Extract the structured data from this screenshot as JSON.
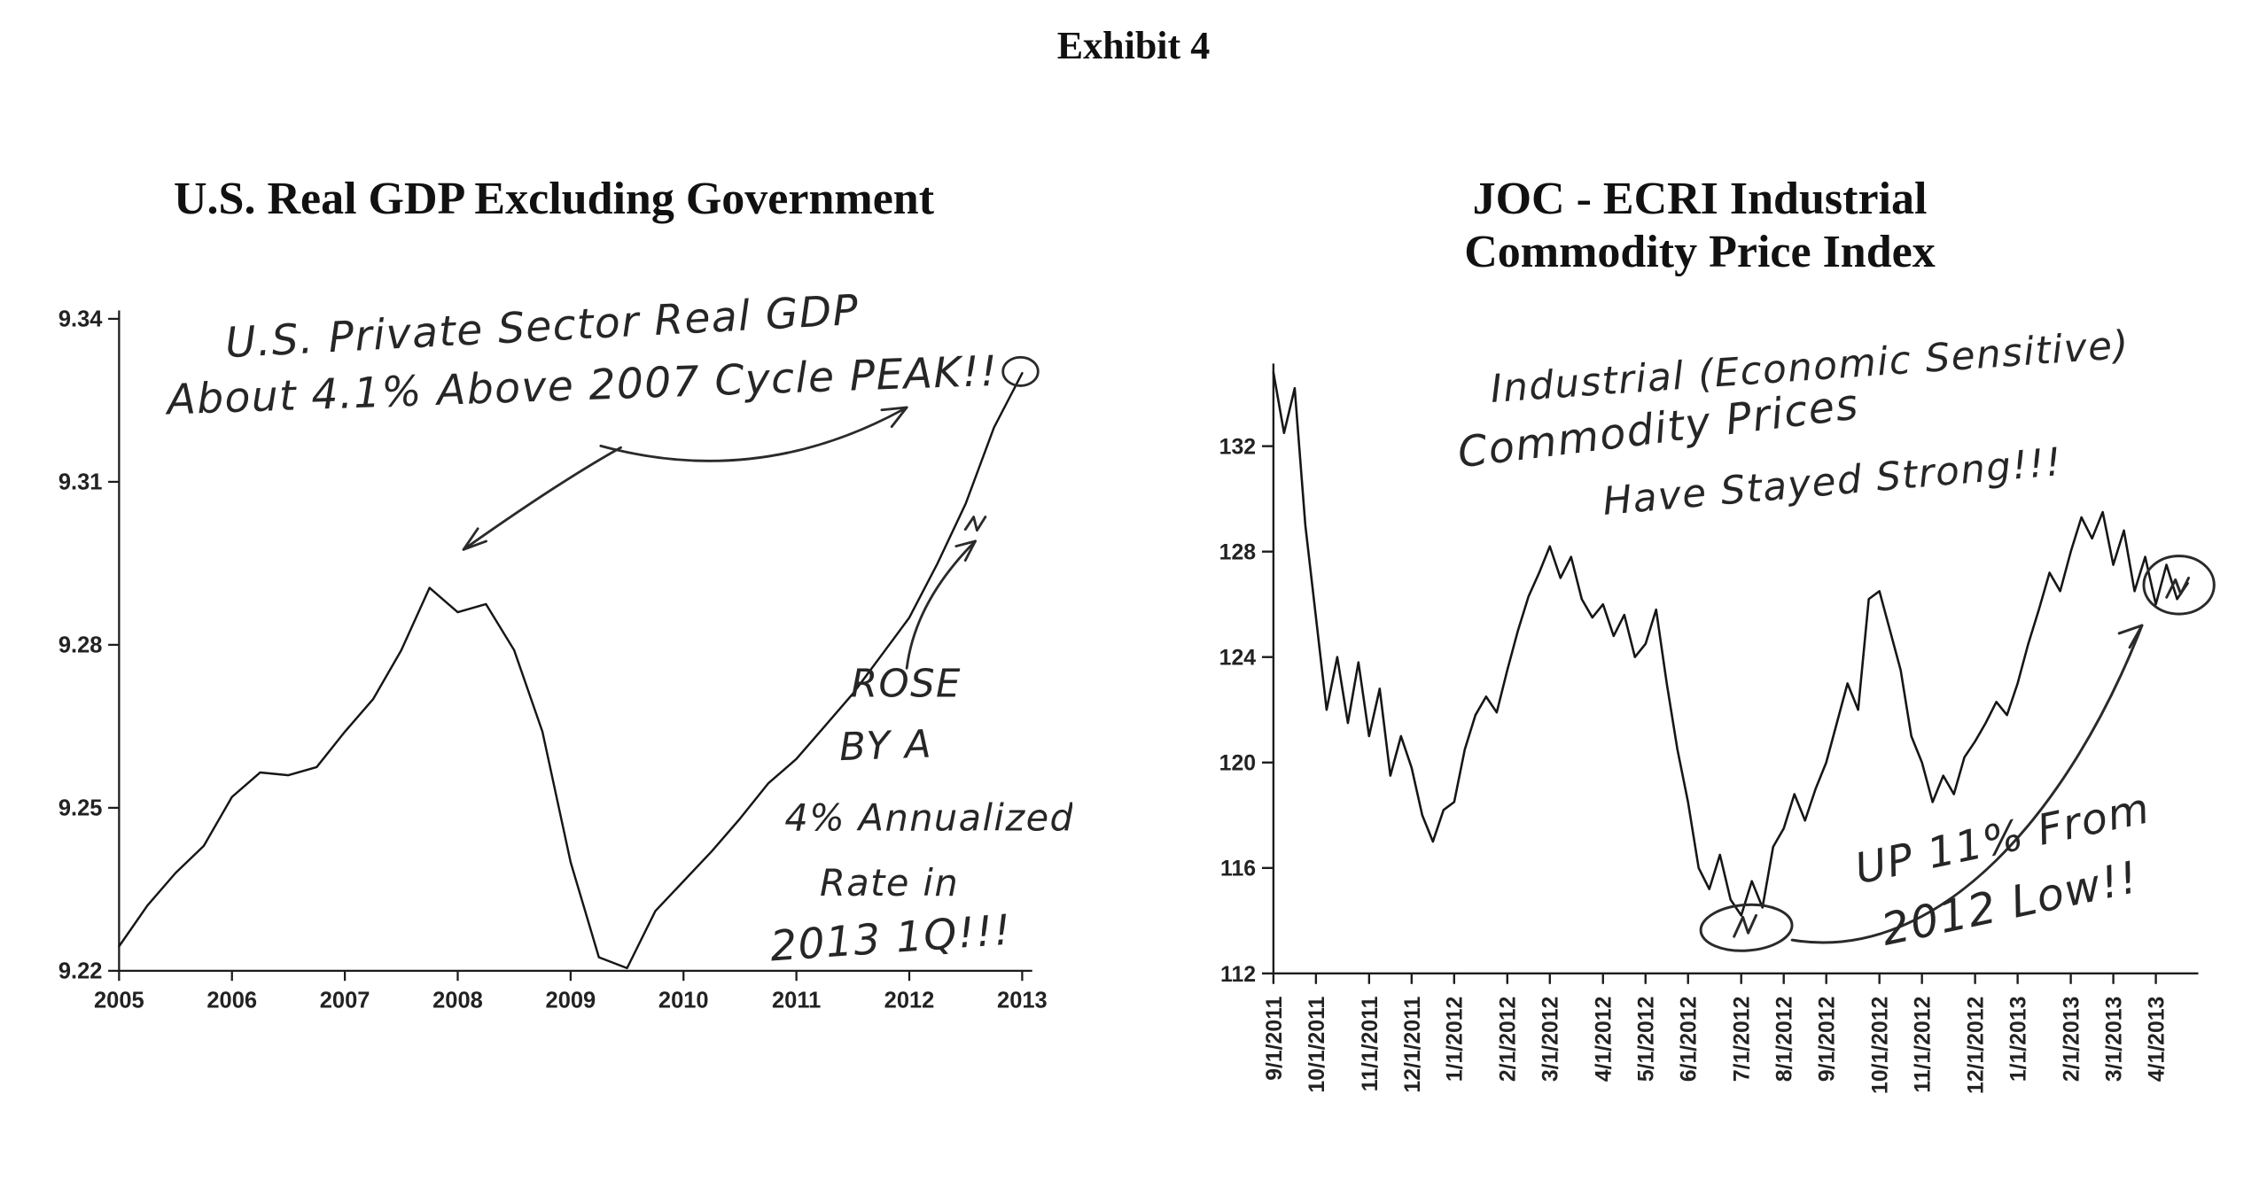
{
  "page": {
    "title": "Exhibit 4"
  },
  "colors": {
    "ink": "#1c1c1c",
    "background": "#ffffff"
  },
  "chart_data": [
    {
      "type": "line",
      "title": "U.S. Real GDP Excluding Government",
      "x_start": "2005",
      "x_interval": "quarterly",
      "x_ticks": [
        "2005",
        "2006",
        "2007",
        "2008",
        "2009",
        "2010",
        "2011",
        "2012",
        "2013"
      ],
      "y_tick_labels": [
        "9.22",
        "9.25",
        "9.28",
        "9.31",
        "9.34"
      ],
      "ylim": [
        9.22,
        9.34
      ],
      "values": [
        9.2245,
        9.232,
        9.238,
        9.243,
        9.252,
        9.2565,
        9.256,
        9.2575,
        9.264,
        9.27,
        9.279,
        9.2905,
        9.286,
        9.2875,
        9.279,
        9.264,
        9.24,
        9.2225,
        9.2205,
        9.231,
        9.2365,
        9.242,
        9.248,
        9.2545,
        9.259,
        9.265,
        9.271,
        9.278,
        9.285,
        9.295,
        9.306,
        9.32,
        9.33
      ],
      "annotations": {
        "top_note": {
          "lines": [
            "U.S. Private Sector Real GDP",
            "About 4.1% Above 2007 Cycle PEAK!!"
          ]
        },
        "rose_note": {
          "lines": [
            "ROSE",
            "BY A",
            "4% Annualized",
            "Rate in",
            "2013 1Q!!!"
          ]
        }
      }
    },
    {
      "type": "line",
      "title": "JOC - ECRI Industrial Commodity Price Index",
      "title_lines": [
        "JOC - ECRI Industrial",
        "Commodity Price Index"
      ],
      "x_interval": "weekly",
      "x_ticks": [
        "9/1/2011",
        "10/1/2011",
        "11/1/2011",
        "12/1/2011",
        "1/1/2012",
        "2/1/2012",
        "3/1/2012",
        "4/1/2012",
        "5/1/2012",
        "6/1/2012",
        "7/1/2012",
        "8/1/2012",
        "9/1/2012",
        "10/1/2012",
        "11/1/2012",
        "12/1/2012",
        "1/1/2013",
        "2/1/2013",
        "3/1/2013",
        "4/1/2013"
      ],
      "x_tick_indices": [
        0,
        4,
        9,
        13,
        17,
        22,
        26,
        31,
        35,
        39,
        44,
        48,
        52,
        57,
        61,
        66,
        70,
        75,
        79,
        83
      ],
      "y_tick_labels": [
        "112",
        "116",
        "120",
        "124",
        "128",
        "132"
      ],
      "ylim": [
        112,
        132
      ],
      "values": [
        134.8,
        132.5,
        134.2,
        129.0,
        125.5,
        122.0,
        124.0,
        121.5,
        123.8,
        121.0,
        122.8,
        119.5,
        121.0,
        119.8,
        118.0,
        117.0,
        118.2,
        118.5,
        120.5,
        121.8,
        122.5,
        121.9,
        123.5,
        125.0,
        126.3,
        127.2,
        128.2,
        127.0,
        127.8,
        126.2,
        125.5,
        126.0,
        124.8,
        125.6,
        124.0,
        124.5,
        125.8,
        123.0,
        120.5,
        118.5,
        116.0,
        115.2,
        116.5,
        114.8,
        114.2,
        115.5,
        114.5,
        116.8,
        117.5,
        118.8,
        117.8,
        119.0,
        120.0,
        121.5,
        123.0,
        122.0,
        126.2,
        126.5,
        125.0,
        123.5,
        121.0,
        120.0,
        118.5,
        119.5,
        118.8,
        120.2,
        120.8,
        121.5,
        122.3,
        121.8,
        123.0,
        124.5,
        125.8,
        127.2,
        126.5,
        128.0,
        129.3,
        128.5,
        129.5,
        127.5,
        128.8,
        126.5,
        127.8,
        126.0,
        127.5,
        126.2,
        126.8
      ],
      "annotations": {
        "top_note": {
          "lines": [
            "Industrial (Economic Sensitive)",
            "Commodity Prices",
            "Have Stayed Strong!!!"
          ]
        },
        "up_note": {
          "lines": [
            "UP 11% From",
            "2012 Low!!"
          ]
        }
      }
    }
  ]
}
